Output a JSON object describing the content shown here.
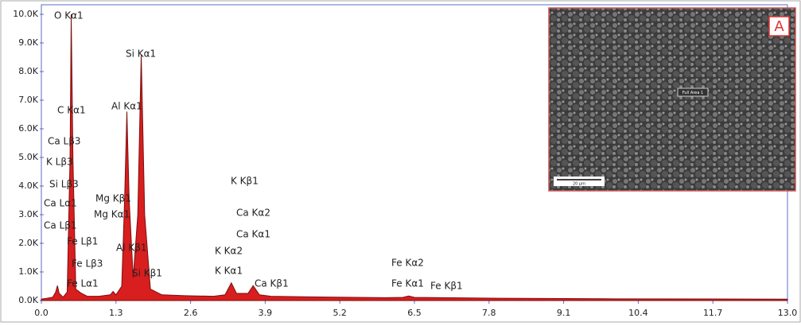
{
  "chart_data": {
    "type": "area",
    "x": [
      0.0,
      0.1,
      0.2,
      0.25,
      0.28,
      0.31,
      0.38,
      0.45,
      0.5,
      0.52,
      0.55,
      0.6,
      0.7,
      0.8,
      1.0,
      1.2,
      1.25,
      1.3,
      1.4,
      1.45,
      1.49,
      1.53,
      1.6,
      1.68,
      1.74,
      1.8,
      1.9,
      2.1,
      2.5,
      3.0,
      3.2,
      3.31,
      3.4,
      3.6,
      3.69,
      3.8,
      4.0,
      5.0,
      6.0,
      6.3,
      6.4,
      6.5,
      8.0,
      10.0,
      13.0
    ],
    "values": [
      50,
      80,
      120,
      300,
      520,
      250,
      120,
      300,
      5000,
      10000,
      5000,
      400,
      250,
      150,
      150,
      200,
      320,
      200,
      500,
      3500,
      6600,
      3500,
      800,
      3000,
      8600,
      3000,
      400,
      200,
      170,
      150,
      200,
      620,
      250,
      250,
      520,
      200,
      150,
      120,
      100,
      110,
      160,
      110,
      80,
      60,
      50
    ],
    "color": "#d81e1e",
    "xlim": [
      0,
      13.0
    ],
    "xticks": [
      {
        "value": 0,
        "label": "0.0"
      },
      1.3,
      2.6,
      3.9,
      5.2,
      6.5,
      7.8,
      9.1,
      10.4,
      11.7,
      {
        "value": 13,
        "label": "13.0"
      }
    ],
    "ylim": [
      0,
      10000
    ],
    "yticks": [
      {
        "value": 0,
        "label": "0.0K"
      },
      {
        "value": 1000,
        "label": "1.0K"
      },
      {
        "value": 2000,
        "label": "2.0K"
      },
      {
        "value": 3000,
        "label": "3.0K"
      },
      {
        "value": 4000,
        "label": "4.0K"
      },
      {
        "value": 5000,
        "label": "5.0K"
      },
      {
        "value": 6000,
        "label": "6.0K"
      },
      {
        "value": 7000,
        "label": "7.0K"
      },
      {
        "value": 8000,
        "label": "8.0K"
      },
      {
        "value": 9000,
        "label": "9.0K"
      },
      {
        "value": 10000,
        "label": "10.0K"
      }
    ],
    "annotations": [
      "O Kα1",
      "Si Kα1",
      "C Kα1",
      "Al Kα1",
      "Ca Lβ3",
      "K Lβ3",
      "Si Lβ3",
      "Mg Kβ1",
      "Ca Lα1",
      "Mg Kα1",
      "Ca Lβ1",
      "Fe Lβ1",
      "Al Kβ1",
      "Fe Lβ3",
      "Si Kβ1",
      "Fe Lα1",
      "K Kβ1",
      "Ca Kα2",
      "Ca Kα1",
      "K Kα2",
      "K Kα1",
      "Ca Kβ1",
      "Fe Kα2",
      "Fe Kα1",
      "Fe Kβ1"
    ],
    "inset": {
      "label": "A",
      "area_label": "Full Area 1",
      "scale_label": "20 μm"
    }
  }
}
